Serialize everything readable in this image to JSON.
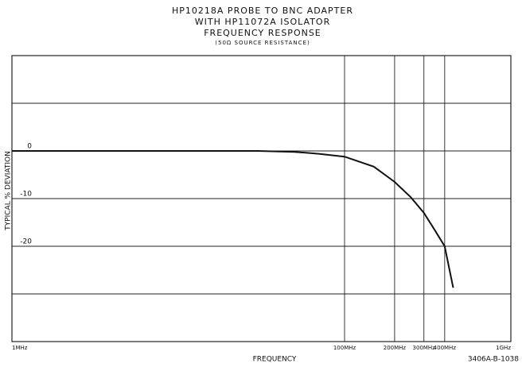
{
  "chart_data": {
    "type": "line",
    "title": [
      "HP10218A PROBE TO BNC ADAPTER",
      "WITH HP11072A ISOLATOR",
      "FREQUENCY RESPONSE"
    ],
    "subtitle": "(50Ω SOURCE RESISTANCE)",
    "x_label": "FREQUENCY",
    "y_label": "TYPICAL % DEVIATION",
    "annotation": "3406A-B-1038",
    "x": [
      1,
      10,
      30,
      50,
      70,
      100,
      150,
      200,
      250,
      300,
      350,
      400,
      450
    ],
    "series": [
      {
        "name": "response",
        "color": "#111111",
        "values": [
          0,
          0,
          0,
          -0.2,
          -0.6,
          -1.2,
          -3.3,
          -6.5,
          -9.7,
          -13,
          -16.7,
          -20,
          -28.7
        ]
      }
    ],
    "x_log": true,
    "xlim": [
      1,
      1000
    ],
    "xticks": [
      {
        "value": 1,
        "label": "1MHz"
      },
      {
        "value": 100,
        "label": "100MHz"
      },
      {
        "value": 200,
        "label": "200MHz"
      },
      {
        "value": 300,
        "label": "300MHz"
      },
      {
        "value": 400,
        "label": "400MHz"
      },
      {
        "value": 1000,
        "label": "1GHz"
      }
    ],
    "ylim": [
      -40,
      20
    ],
    "yticks": [
      0,
      -10,
      -20
    ],
    "ygrid": [
      10,
      0,
      -10,
      -20,
      -30
    ],
    "grid": true
  }
}
